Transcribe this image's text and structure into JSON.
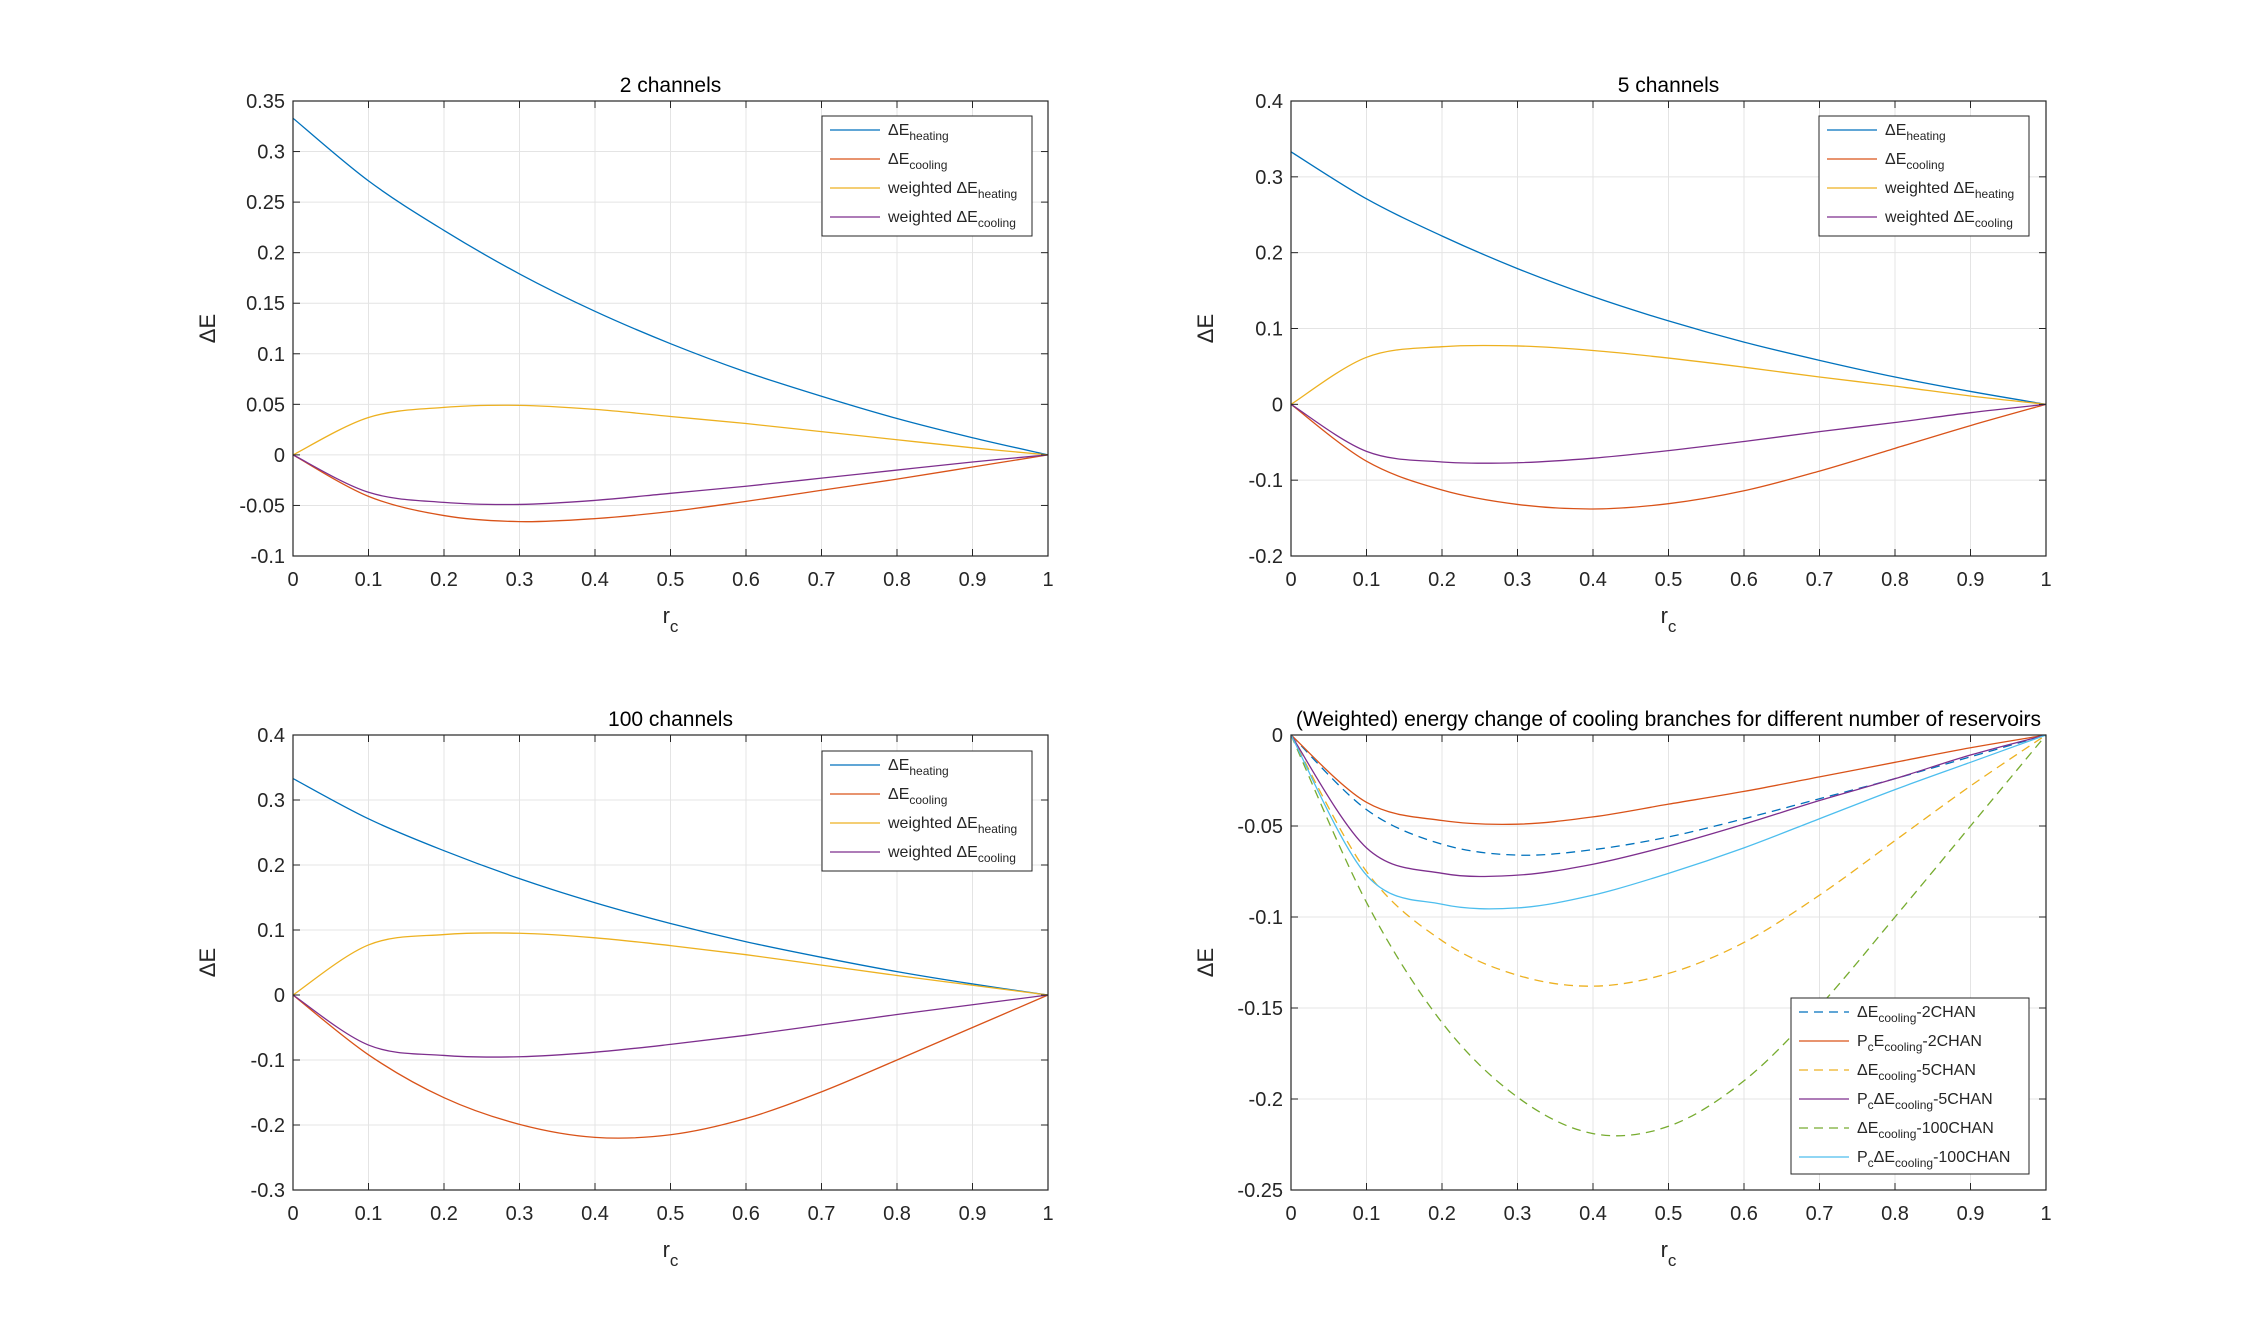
{
  "colors": {
    "blue": "#0072BD",
    "orange": "#D95319",
    "yellow": "#EDB120",
    "purple": "#7E2F8E",
    "lightblue": "#4DBEEE",
    "grid": "#e4e4e4",
    "axis": "#262626"
  },
  "chart_data": [
    {
      "type": "line",
      "title": "2 channels",
      "xlabel": "r",
      "xlabel_sub": "c",
      "ylabel": "ΔE",
      "xlim": [
        0,
        1
      ],
      "ylim": [
        -0.1,
        0.35
      ],
      "xticks": [
        0,
        0.1,
        0.2,
        0.3,
        0.4,
        0.5,
        0.6,
        0.7,
        0.8,
        0.9,
        1
      ],
      "yticks": [
        -0.1,
        -0.05,
        0,
        0.05,
        0.1,
        0.15,
        0.2,
        0.25,
        0.3,
        0.35
      ],
      "xtick_labels": [
        "0",
        "0.1",
        "0.2",
        "0.3",
        "0.4",
        "0.5",
        "0.6",
        "0.7",
        "0.8",
        "0.9",
        "1"
      ],
      "ytick_labels": [
        "-0.1",
        "-0.05",
        "0",
        "0.05",
        "0.1",
        "0.15",
        "0.2",
        "0.25",
        "0.3",
        "0.35"
      ],
      "legend_position": "top-right",
      "x": [
        0,
        0.1,
        0.2,
        0.3,
        0.4,
        0.5,
        0.6,
        0.7,
        0.8,
        0.9,
        1
      ],
      "series": [
        {
          "name": "ΔE",
          "sub": "heating",
          "color": "blue",
          "dash": false,
          "values": [
            0.333,
            0.271,
            0.222,
            0.179,
            0.142,
            0.11,
            0.082,
            0.058,
            0.036,
            0.017,
            0
          ]
        },
        {
          "name": "ΔE",
          "sub": "cooling",
          "color": "orange",
          "dash": false,
          "values": [
            0,
            -0.041,
            -0.06,
            -0.066,
            -0.063,
            -0.056,
            -0.046,
            -0.035,
            -0.024,
            -0.012,
            0
          ]
        },
        {
          "name": "weighted ΔE",
          "sub": "heating",
          "color": "yellow",
          "dash": false,
          "values": [
            0,
            0.037,
            0.047,
            0.049,
            0.045,
            0.038,
            0.031,
            0.023,
            0.015,
            0.007,
            0
          ]
        },
        {
          "name": "weighted ΔE",
          "sub": "cooling",
          "color": "purple",
          "dash": false,
          "values": [
            0,
            -0.037,
            -0.047,
            -0.049,
            -0.045,
            -0.038,
            -0.031,
            -0.023,
            -0.015,
            -0.007,
            0
          ]
        }
      ]
    },
    {
      "type": "line",
      "title": "5 channels",
      "xlabel": "r",
      "xlabel_sub": "c",
      "ylabel": "ΔE",
      "xlim": [
        0,
        1
      ],
      "ylim": [
        -0.2,
        0.4
      ],
      "xticks": [
        0,
        0.1,
        0.2,
        0.3,
        0.4,
        0.5,
        0.6,
        0.7,
        0.8,
        0.9,
        1
      ],
      "yticks": [
        -0.2,
        -0.1,
        0,
        0.1,
        0.2,
        0.3,
        0.4
      ],
      "xtick_labels": [
        "0",
        "0.1",
        "0.2",
        "0.3",
        "0.4",
        "0.5",
        "0.6",
        "0.7",
        "0.8",
        "0.9",
        "1"
      ],
      "ytick_labels": [
        "-0.2",
        "-0.1",
        "0",
        "0.1",
        "0.2",
        "0.3",
        "0.4"
      ],
      "legend_position": "top-right",
      "x": [
        0,
        0.1,
        0.2,
        0.3,
        0.4,
        0.5,
        0.6,
        0.7,
        0.8,
        0.9,
        1
      ],
      "series": [
        {
          "name": "ΔE",
          "sub": "heating",
          "color": "blue",
          "dash": false,
          "values": [
            0.333,
            0.271,
            0.222,
            0.179,
            0.142,
            0.11,
            0.082,
            0.058,
            0.036,
            0.017,
            0
          ]
        },
        {
          "name": "ΔE",
          "sub": "cooling",
          "color": "orange",
          "dash": false,
          "values": [
            0,
            -0.075,
            -0.113,
            -0.132,
            -0.138,
            -0.131,
            -0.114,
            -0.088,
            -0.058,
            -0.028,
            0
          ]
        },
        {
          "name": "weighted ΔE",
          "sub": "heating",
          "color": "yellow",
          "dash": false,
          "values": [
            0,
            0.062,
            0.076,
            0.077,
            0.071,
            0.061,
            0.049,
            0.036,
            0.024,
            0.011,
            0
          ]
        },
        {
          "name": "weighted ΔE",
          "sub": "cooling",
          "color": "purple",
          "dash": false,
          "values": [
            0,
            -0.062,
            -0.076,
            -0.077,
            -0.071,
            -0.061,
            -0.049,
            -0.036,
            -0.024,
            -0.011,
            0
          ]
        }
      ]
    },
    {
      "type": "line",
      "title": "100 channels",
      "xlabel": "r",
      "xlabel_sub": "c",
      "ylabel": "ΔE",
      "xlim": [
        0,
        1
      ],
      "ylim": [
        -0.3,
        0.4
      ],
      "xticks": [
        0,
        0.1,
        0.2,
        0.3,
        0.4,
        0.5,
        0.6,
        0.7,
        0.8,
        0.9,
        1
      ],
      "yticks": [
        -0.3,
        -0.2,
        -0.1,
        0,
        0.1,
        0.2,
        0.3,
        0.4
      ],
      "xtick_labels": [
        "0",
        "0.1",
        "0.2",
        "0.3",
        "0.4",
        "0.5",
        "0.6",
        "0.7",
        "0.8",
        "0.9",
        "1"
      ],
      "ytick_labels": [
        "-0.3",
        "-0.2",
        "-0.1",
        "0",
        "0.1",
        "0.2",
        "0.3",
        "0.4"
      ],
      "legend_position": "top-right",
      "x": [
        0,
        0.1,
        0.2,
        0.3,
        0.4,
        0.5,
        0.6,
        0.7,
        0.8,
        0.9,
        1
      ],
      "series": [
        {
          "name": "ΔE",
          "sub": "heating",
          "color": "blue",
          "dash": false,
          "values": [
            0.333,
            0.271,
            0.222,
            0.179,
            0.142,
            0.11,
            0.082,
            0.058,
            0.036,
            0.017,
            0
          ]
        },
        {
          "name": "ΔE",
          "sub": "cooling",
          "color": "orange",
          "dash": false,
          "values": [
            0,
            -0.092,
            -0.158,
            -0.199,
            -0.219,
            -0.215,
            -0.19,
            -0.149,
            -0.1,
            -0.05,
            0
          ]
        },
        {
          "name": "weighted ΔE",
          "sub": "heating",
          "color": "yellow",
          "dash": false,
          "values": [
            0,
            0.077,
            0.093,
            0.095,
            0.088,
            0.076,
            0.062,
            0.046,
            0.03,
            0.015,
            0
          ]
        },
        {
          "name": "weighted ΔE",
          "sub": "cooling",
          "color": "purple",
          "dash": false,
          "values": [
            0,
            -0.077,
            -0.093,
            -0.095,
            -0.088,
            -0.076,
            -0.062,
            -0.046,
            -0.03,
            -0.015,
            0
          ]
        }
      ]
    },
    {
      "type": "line",
      "title": "(Weighted) energy change of cooling branches for different number of reservoirs",
      "xlabel": "r",
      "xlabel_sub": "c",
      "ylabel": "ΔE",
      "xlim": [
        0,
        1
      ],
      "ylim": [
        -0.25,
        0
      ],
      "xticks": [
        0,
        0.1,
        0.2,
        0.3,
        0.4,
        0.5,
        0.6,
        0.7,
        0.8,
        0.9,
        1
      ],
      "yticks": [
        -0.25,
        -0.2,
        -0.15,
        -0.1,
        -0.05,
        0
      ],
      "xtick_labels": [
        "0",
        "0.1",
        "0.2",
        "0.3",
        "0.4",
        "0.5",
        "0.6",
        "0.7",
        "0.8",
        "0.9",
        "1"
      ],
      "ytick_labels": [
        "-0.25",
        "-0.2",
        "-0.15",
        "-0.1",
        "-0.05",
        "0"
      ],
      "legend_position": "bottom-right",
      "x": [
        0,
        0.1,
        0.2,
        0.3,
        0.4,
        0.5,
        0.6,
        0.7,
        0.8,
        0.9,
        1
      ],
      "series": [
        {
          "name": "ΔE",
          "sub": "cooling",
          "suffix": "-2CHAN",
          "color": "blue",
          "dash": true,
          "values": [
            0,
            -0.041,
            -0.06,
            -0.066,
            -0.063,
            -0.056,
            -0.046,
            -0.035,
            -0.024,
            -0.012,
            0
          ]
        },
        {
          "name": "P",
          "sub_pre": "c",
          "name2": "E",
          "sub": "cooling",
          "suffix": "-2CHAN",
          "color": "orange",
          "dash": false,
          "values": [
            0,
            -0.037,
            -0.047,
            -0.049,
            -0.045,
            -0.038,
            -0.031,
            -0.023,
            -0.015,
            -0.007,
            0
          ]
        },
        {
          "name": "ΔE",
          "sub": "cooling",
          "suffix": "-5CHAN",
          "color": "yellow",
          "dash": true,
          "values": [
            0,
            -0.075,
            -0.113,
            -0.132,
            -0.138,
            -0.131,
            -0.114,
            -0.088,
            -0.058,
            -0.028,
            0
          ]
        },
        {
          "name": "P",
          "sub_pre": "c",
          "name2": "ΔE",
          "sub": "cooling",
          "suffix": "-5CHAN",
          "color": "purple",
          "dash": false,
          "values": [
            0,
            -0.062,
            -0.076,
            -0.077,
            -0.071,
            -0.061,
            -0.049,
            -0.036,
            -0.024,
            -0.011,
            0
          ]
        },
        {
          "name": "ΔE",
          "sub": "cooling",
          "suffix": "-100CHAN",
          "color": "#77AC30",
          "dash": true,
          "values": [
            0,
            -0.092,
            -0.158,
            -0.199,
            -0.219,
            -0.215,
            -0.19,
            -0.149,
            -0.1,
            -0.05,
            0
          ]
        },
        {
          "name": "P",
          "sub_pre": "c",
          "name2": "ΔE",
          "sub": "cooling",
          "suffix": "-100CHAN",
          "color": "lightblue",
          "dash": false,
          "values": [
            0,
            -0.077,
            -0.093,
            -0.095,
            -0.088,
            -0.076,
            -0.062,
            -0.046,
            -0.03,
            -0.015,
            0
          ]
        }
      ]
    }
  ]
}
